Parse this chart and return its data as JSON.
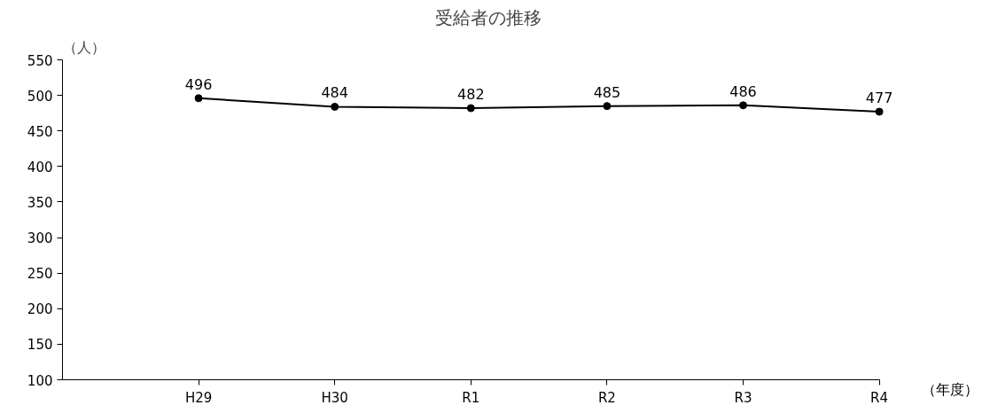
{
  "chart_data": {
    "type": "line",
    "title": "受給者の推移",
    "ylabel": "（人）",
    "xlabel": "（年度）",
    "categories": [
      "H29",
      "H30",
      "R1",
      "R2",
      "R3",
      "R4"
    ],
    "series": [
      {
        "color": "#000000",
        "values": [
          496,
          484,
          482,
          485,
          486,
          477
        ]
      }
    ],
    "ylim": [
      100,
      550
    ],
    "yticks": [
      100,
      150,
      200,
      250,
      300,
      350,
      400,
      450,
      500,
      550
    ],
    "data_labels": true,
    "marker": "circle",
    "line_style": "solid",
    "grid": false
  }
}
